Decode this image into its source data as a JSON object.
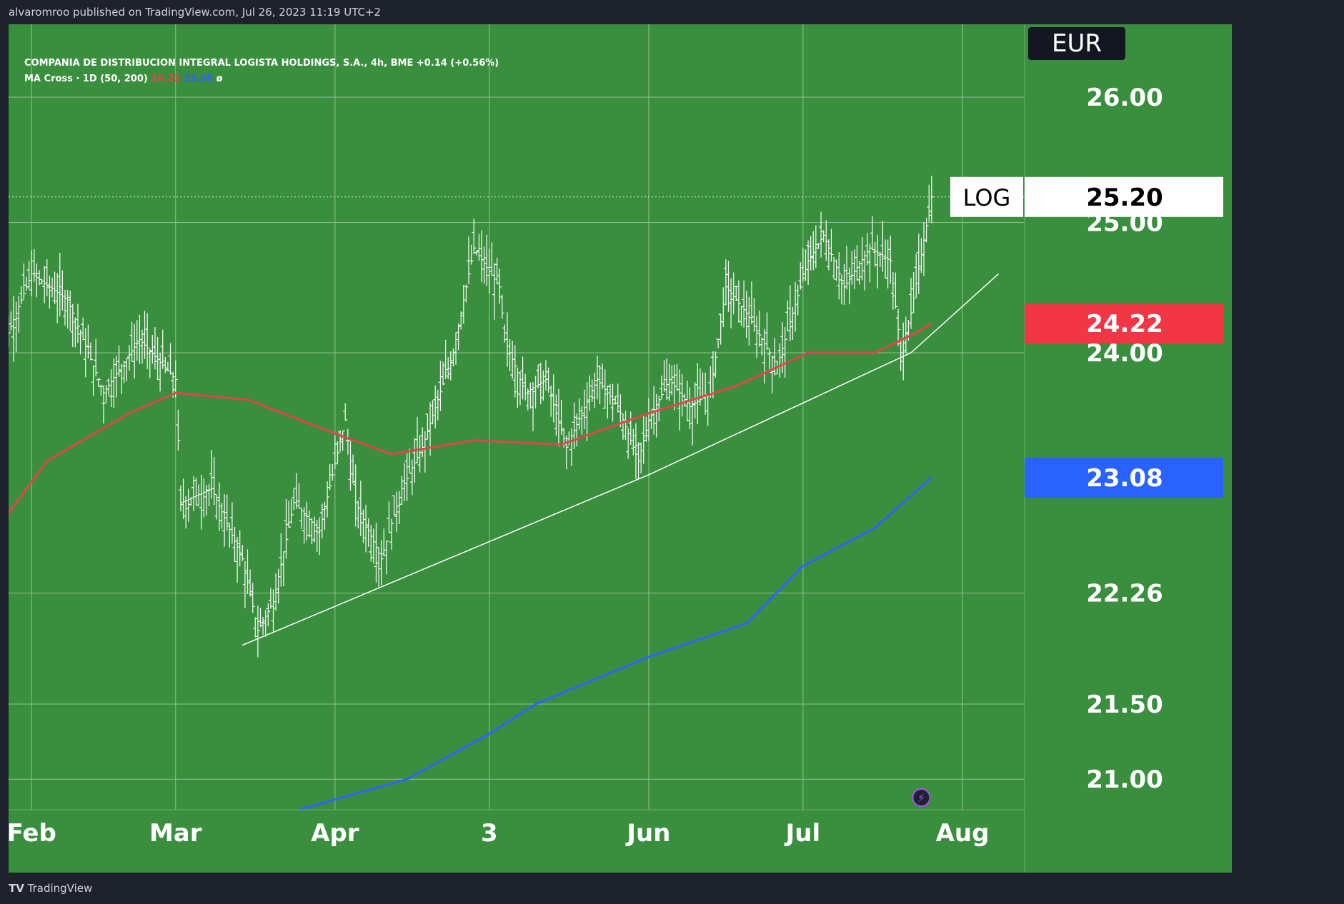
{
  "publish_info": "alvaromroo published on TradingView.com, Jul 26, 2023 11:19 UTC+2",
  "legend": {
    "symbol_line": "COMPANIA DE DISTRIBUCION INTEGRAL LOGISTA HOLDINGS, S.A., 4h, BME  +0.14 (+0.56%)",
    "indicator_name": "MA Cross · 1D (50, 200)",
    "ma_fast_value": "24.22",
    "ma_slow_value": "23.08",
    "indicator_extra": "ø"
  },
  "currency": "EUR",
  "scale_mode": "LOG",
  "footer_brand": "TradingView",
  "colors": {
    "background": "#3a8f3e",
    "chrome": "#1e222d",
    "grid": "#8fc08f",
    "bars": "#ffffff",
    "ma_fast": "#e0454d",
    "ma_slow": "#2e62ff",
    "trendline": "#ffffff"
  },
  "chart_data": {
    "type": "line",
    "price_scale": "log",
    "ylim": [
      20.8,
      26.6
    ],
    "y_ticks": [
      "26.00",
      "25.00",
      "24.00",
      "22.26",
      "21.50",
      "21.00"
    ],
    "x_ticks": [
      "Feb",
      "Mar",
      "Apr",
      "3",
      "Jun",
      "Jul",
      "Aug"
    ],
    "last_price": "25.20",
    "price_labels": [
      {
        "name": "last",
        "value": "25.20"
      },
      {
        "name": "ma_fast",
        "value": "24.22"
      },
      {
        "name": "ma_slow",
        "value": "23.08"
      }
    ],
    "series": [
      {
        "values": [
          [
            "Jan 25",
            23.9
          ],
          [
            "Feb 1",
            24.6
          ],
          [
            "Feb 8",
            24.4
          ],
          [
            "Feb 15",
            23.7
          ],
          [
            "Feb 22",
            24.1
          ],
          [
            "Mar 1",
            23.8
          ],
          [
            "Mar 2",
            22.9
          ],
          [
            "Mar 8",
            23.0
          ],
          [
            "Mar 14",
            22.5
          ],
          [
            "Mar 17",
            22.0
          ],
          [
            "Mar 20",
            22.2
          ],
          [
            "Mar 24",
            22.9
          ],
          [
            "Mar 29",
            22.7
          ],
          [
            "Apr 3",
            23.5
          ],
          [
            "Apr 5",
            22.9
          ],
          [
            "Apr 10",
            22.5
          ],
          [
            "Apr 14",
            23.0
          ],
          [
            "Apr 18",
            23.3
          ],
          [
            "Apr 24",
            24.0
          ],
          [
            "Apr 28",
            24.8
          ],
          [
            "May 3",
            24.5
          ],
          [
            "May 4",
            24.1
          ],
          [
            "May 8",
            23.7
          ],
          [
            "May 12",
            23.8
          ],
          [
            "May 16",
            23.3
          ],
          [
            "May 22",
            23.8
          ],
          [
            "May 26",
            23.6
          ],
          [
            "May 30",
            23.2
          ],
          [
            "Jun 1",
            23.5
          ],
          [
            "Jun 5",
            23.8
          ],
          [
            "Jun 9",
            23.6
          ],
          [
            "Jun 13",
            23.7
          ],
          [
            "Jun 16",
            24.5
          ],
          [
            "Jun 20",
            24.3
          ],
          [
            "Jun 26",
            23.9
          ],
          [
            "Jul 2",
            24.7
          ],
          [
            "Jul 5",
            24.9
          ],
          [
            "Jul 9",
            24.5
          ],
          [
            "Jul 14",
            24.8
          ],
          [
            "Jul 18",
            24.7
          ],
          [
            "Jul 20",
            24.0
          ],
          [
            "Jul 22",
            24.3
          ],
          [
            "Jul 26",
            25.2
          ]
        ]
      },
      {
        "name": "MA 50",
        "values": [
          [
            "Jan 25",
            22.7
          ],
          [
            "Feb 4",
            23.2
          ],
          [
            "Feb 20",
            23.55
          ],
          [
            "Mar 1",
            23.7
          ],
          [
            "Mar 15",
            23.65
          ],
          [
            "Apr 1",
            23.4
          ],
          [
            "Apr 12",
            23.25
          ],
          [
            "Apr 28",
            23.35
          ],
          [
            "May 15",
            23.32
          ],
          [
            "Jun 1",
            23.55
          ],
          [
            "Jun 18",
            23.75
          ],
          [
            "Jul 2",
            24.0
          ],
          [
            "Jul 15",
            24.0
          ],
          [
            "Jul 23",
            24.15
          ],
          [
            "Jul 26",
            24.22
          ]
        ]
      },
      {
        "name": "MA 200",
        "values": [
          [
            "Mar 25",
            20.8
          ],
          [
            "Apr 15",
            21.0
          ],
          [
            "May 1",
            21.3
          ],
          [
            "May 10",
            21.5
          ],
          [
            "Jun 1",
            21.82
          ],
          [
            "Jun 20",
            22.05
          ],
          [
            "Jul 1",
            22.45
          ],
          [
            "Jul 15",
            22.72
          ],
          [
            "Jul 26",
            23.08
          ]
        ]
      },
      {
        "name": "Trendline",
        "values": [
          [
            "Mar 14",
            21.9
          ],
          [
            "Jun 1",
            23.1
          ],
          [
            "Jul 22",
            24.0
          ],
          [
            "Aug 8",
            24.6
          ]
        ]
      }
    ]
  }
}
